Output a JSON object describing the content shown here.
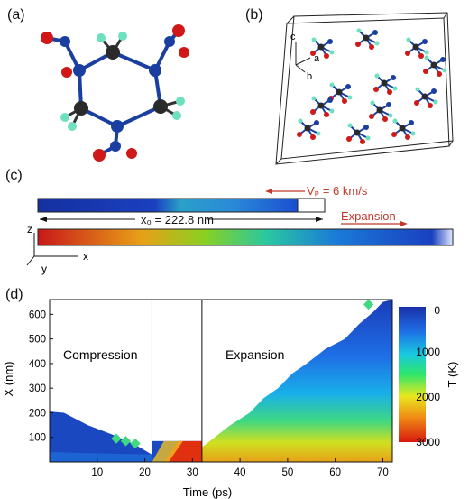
{
  "panels": {
    "a": "(a)",
    "b": "(b)",
    "c": "(c)",
    "d": "(d)"
  },
  "panel_b": {
    "axis_labels": [
      "c",
      "a",
      "b"
    ]
  },
  "panel_c": {
    "velocity_label": "Vₚ = 6 km/s",
    "length_label": "x₀ = 222.8 nm",
    "expansion_label": "Expansion",
    "axis_labels": [
      "z",
      "y",
      "x"
    ],
    "colors": {
      "annotation": "#c0392b"
    }
  },
  "chart_data": {
    "type": "heatmap",
    "xlabel": "Time (ps)",
    "ylabel": "X (nm)",
    "x_ticks": [
      10,
      20,
      30,
      40,
      50,
      60,
      70
    ],
    "y_ticks": [
      100,
      200,
      300,
      400,
      500,
      600
    ],
    "xlim": [
      0,
      72
    ],
    "ylim": [
      0,
      660
    ],
    "regions": [
      "Compression",
      "Expansion"
    ],
    "region_boundaries_ps": [
      21.5,
      32
    ],
    "colorbar": {
      "label": "T (K)",
      "ticks": [
        0,
        1000,
        2000,
        3000
      ],
      "range": [
        0,
        3000
      ],
      "colors": [
        "#1a2fa8",
        "#1e6fe6",
        "#18c8e0",
        "#2ee66a",
        "#e8e81e",
        "#f08a14",
        "#d81a10"
      ]
    }
  }
}
